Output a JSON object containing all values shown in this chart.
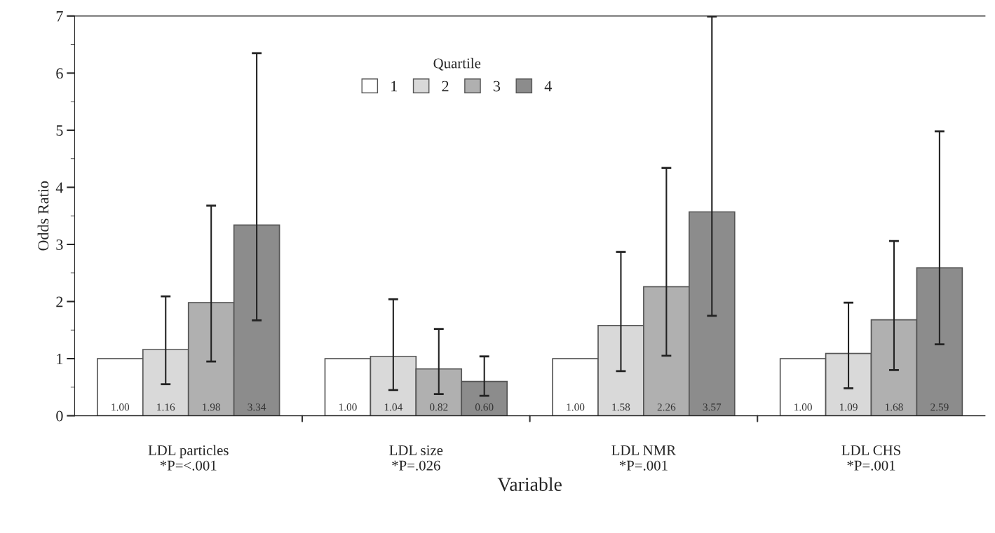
{
  "chart_data": {
    "type": "bar",
    "xlabel": "Variable",
    "ylabel": "Odds Ratio",
    "legend_title": "Quartile",
    "categories": [
      "LDL particles\n*P=<.001",
      "LDL size\n*P=.026",
      "LDL NMR\n*P=.001",
      "LDL CHS\n*P=.001"
    ],
    "series": [
      {
        "name": "1",
        "color": "#ffffff",
        "values": [
          1.0,
          1.0,
          1.0,
          1.0
        ],
        "value_labels": [
          "1.00",
          "1.00",
          "1.00",
          "1.00"
        ]
      },
      {
        "name": "2",
        "color": "#d9d9d9",
        "values": [
          1.16,
          1.04,
          1.58,
          1.09
        ],
        "value_labels": [
          "1.16",
          "1.04",
          "1.58",
          "1.09"
        ],
        "errors": [
          [
            0.55,
            2.09
          ],
          [
            0.45,
            2.04
          ],
          [
            0.78,
            2.87
          ],
          [
            0.48,
            1.98
          ]
        ]
      },
      {
        "name": "3",
        "color": "#b0b0b0",
        "values": [
          1.98,
          0.82,
          2.26,
          1.68
        ],
        "value_labels": [
          "1.98",
          "0.82",
          "2.26",
          "1.68"
        ],
        "errors": [
          [
            0.95,
            3.68
          ],
          [
            0.38,
            1.52
          ],
          [
            1.05,
            4.34
          ],
          [
            0.8,
            3.06
          ]
        ]
      },
      {
        "name": "4",
        "color": "#8c8c8c",
        "values": [
          3.34,
          0.6,
          3.57,
          2.59
        ],
        "value_labels": [
          "3.34",
          "0.60",
          "3.57",
          "2.59"
        ],
        "errors": [
          [
            1.67,
            6.35
          ],
          [
            0.35,
            1.04
          ],
          [
            1.75,
            6.99
          ],
          [
            1.25,
            4.98
          ]
        ]
      }
    ],
    "ylim": [
      0,
      7
    ],
    "yticks": [
      0,
      1,
      2,
      3,
      4,
      5,
      6,
      7
    ],
    "legend": "top",
    "grid": false
  }
}
